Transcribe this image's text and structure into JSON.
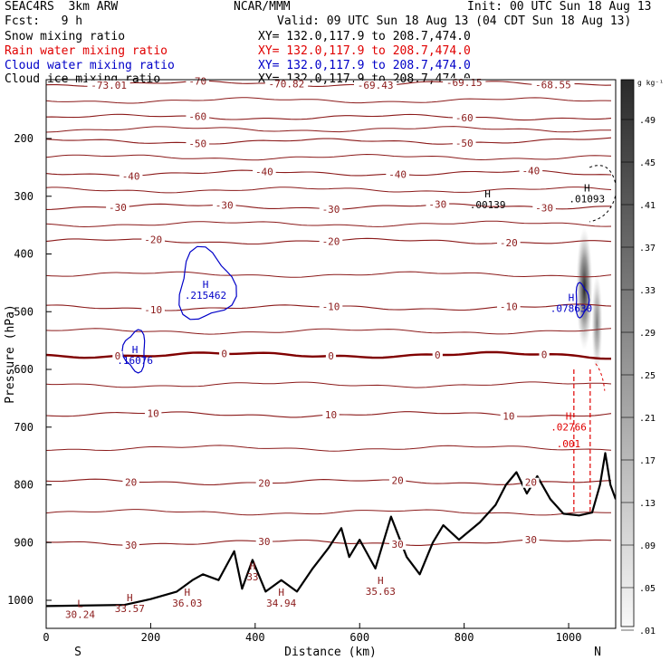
{
  "header": {
    "model": "SEAC4RS  3km ARW",
    "org": "NCAR/MMM",
    "init": "Init: 00 UTC Sun 18 Aug 13",
    "fcst": "Fcst:   9 h",
    "valid": "Valid: 09 UTC Sun 18 Aug 13 (04 CDT Sun 18 Aug 13)"
  },
  "fields": [
    {
      "name": "Snow mixing ratio",
      "xy": "XY= 132.0,117.9 to 208.7,474.0",
      "color": "#000000"
    },
    {
      "name": "Rain water mixing ratio",
      "xy": "XY= 132.0,117.9 to 208.7,474.0",
      "color": "#e00000"
    },
    {
      "name": "Cloud water mixing ratio",
      "xy": "XY= 132.0,117.9 to 208.7,474.0",
      "color": "#0000c8"
    },
    {
      "name": "Cloud ice mixing ratio",
      "xy": "XY= 132.0,117.9 to 208.7,474.0",
      "color": "#000000"
    }
  ],
  "chart_data": {
    "type": "line",
    "xlabel": "Distance (km)",
    "ylabel": "Pressure (hPa)",
    "x_ticks": [
      0,
      200,
      400,
      600,
      800,
      1000
    ],
    "y_ticks": [
      200,
      300,
      400,
      500,
      600,
      700,
      800,
      900,
      1000
    ],
    "xlim": [
      0,
      1090
    ],
    "ylim": [
      1050,
      100
    ],
    "end_labels": {
      "left": "S",
      "right": "N"
    },
    "isotherms_celsius": [
      {
        "temp": -70,
        "pressure": 105,
        "labels": [
          "-73.01",
          "-70",
          "-70.82",
          "-69.43",
          "-69.15",
          "-68.55"
        ]
      },
      {
        "temp": -60,
        "pressure": 163,
        "labels": [
          "-60",
          "-60"
        ]
      },
      {
        "temp": -50,
        "pressure": 205,
        "labels": [
          "-50",
          "-50"
        ]
      },
      {
        "temp": -40,
        "pressure": 260,
        "labels": [
          "-40",
          "-40",
          "-40",
          "-40"
        ]
      },
      {
        "temp": -30,
        "pressure": 318,
        "labels": [
          "-30",
          "-30",
          "-30",
          "-30",
          "-30"
        ]
      },
      {
        "temp": -20,
        "pressure": 378,
        "labels": [
          "-20",
          "-20",
          "-20"
        ]
      },
      {
        "temp": -10,
        "pressure": 493,
        "labels": [
          "-10",
          "-10",
          "-10"
        ]
      },
      {
        "temp": 0,
        "pressure": 575,
        "labels": [
          "0",
          "0",
          "0",
          "0",
          "0"
        ]
      },
      {
        "temp": 10,
        "pressure": 678,
        "labels": [
          "10",
          "10",
          "10"
        ]
      },
      {
        "temp": 20,
        "pressure": 795,
        "labels": [
          "20",
          "20",
          "20",
          "20"
        ]
      },
      {
        "temp": 30,
        "pressure": 900,
        "labels": [
          "30",
          "30",
          "30",
          "30"
        ]
      }
    ],
    "extrema": [
      {
        "kind": "H",
        "value": ".00139",
        "x": 845,
        "p": 305,
        "color": "#000000"
      },
      {
        "kind": "H",
        "value": ".01093",
        "x": 1035,
        "p": 295,
        "color": "#000000"
      },
      {
        "kind": "H",
        "value": ".215462",
        "x": 305,
        "p": 462,
        "color": "#0000c8"
      },
      {
        "kind": "H",
        "value": ".078630",
        "x": 1005,
        "p": 485,
        "color": "#0000c8"
      },
      {
        "kind": "H",
        "value": ".16076",
        "x": 170,
        "p": 575,
        "color": "#0000c8"
      },
      {
        "kind": "H",
        "value": ".02766",
        "x": 1000,
        "p": 690,
        "color": "#e00000"
      },
      {
        "kind": "L",
        "value": "30.24",
        "x": 65,
        "p": 1015,
        "color": "#8b1a1a"
      },
      {
        "kind": "H",
        "value": "33.57",
        "x": 160,
        "p": 1005,
        "color": "#8b1a1a"
      },
      {
        "kind": "H",
        "value": "36.03",
        "x": 270,
        "p": 995,
        "color": "#8b1a1a"
      },
      {
        "kind": "H",
        "value": "34.94",
        "x": 450,
        "p": 995,
        "color": "#8b1a1a"
      },
      {
        "kind": "H",
        "value": "35.63",
        "x": 640,
        "p": 975,
        "color": "#8b1a1a"
      },
      {
        "kind": "H",
        "value": "33",
        "x": 395,
        "p": 950,
        "color": "#8b1a1a"
      }
    ],
    "rain_label": ".001",
    "terrain_pressure": [
      {
        "x": 0,
        "p": 1010
      },
      {
        "x": 150,
        "p": 1008
      },
      {
        "x": 200,
        "p": 998
      },
      {
        "x": 250,
        "p": 985
      },
      {
        "x": 280,
        "p": 965
      },
      {
        "x": 300,
        "p": 955
      },
      {
        "x": 330,
        "p": 965
      },
      {
        "x": 360,
        "p": 915
      },
      {
        "x": 375,
        "p": 980
      },
      {
        "x": 395,
        "p": 930
      },
      {
        "x": 420,
        "p": 985
      },
      {
        "x": 450,
        "p": 965
      },
      {
        "x": 480,
        "p": 985
      },
      {
        "x": 510,
        "p": 945
      },
      {
        "x": 540,
        "p": 910
      },
      {
        "x": 565,
        "p": 875
      },
      {
        "x": 580,
        "p": 925
      },
      {
        "x": 600,
        "p": 895
      },
      {
        "x": 630,
        "p": 945
      },
      {
        "x": 660,
        "p": 855
      },
      {
        "x": 690,
        "p": 925
      },
      {
        "x": 715,
        "p": 955
      },
      {
        "x": 740,
        "p": 900
      },
      {
        "x": 760,
        "p": 870
      },
      {
        "x": 790,
        "p": 895
      },
      {
        "x": 830,
        "p": 865
      },
      {
        "x": 860,
        "p": 835
      },
      {
        "x": 880,
        "p": 800
      },
      {
        "x": 900,
        "p": 778
      },
      {
        "x": 920,
        "p": 815
      },
      {
        "x": 940,
        "p": 785
      },
      {
        "x": 965,
        "p": 825
      },
      {
        "x": 990,
        "p": 850
      },
      {
        "x": 1020,
        "p": 853
      },
      {
        "x": 1045,
        "p": 848
      },
      {
        "x": 1060,
        "p": 800
      },
      {
        "x": 1070,
        "p": 745
      },
      {
        "x": 1080,
        "p": 800
      },
      {
        "x": 1090,
        "p": 825
      }
    ],
    "colorbar": {
      "unit": "g kg⁻¹",
      "labels": [
        ".49",
        ".45",
        ".41",
        ".37",
        ".33",
        ".29",
        ".25",
        ".21",
        ".17",
        ".13",
        ".09",
        ".05",
        ".01"
      ]
    },
    "colors": {
      "isotherm": "#8b1a1a",
      "zero_isotherm": "#800000",
      "snow": "#000000",
      "rain": "#e00000",
      "cloud_water": "#0000c8",
      "terrain": "#000000"
    }
  }
}
